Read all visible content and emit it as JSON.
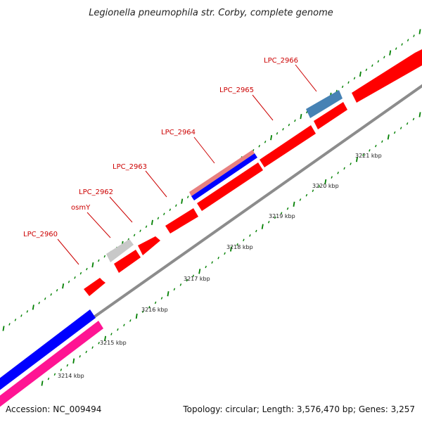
{
  "title": "Legionella pneumophila str. Corby, complete genome",
  "footer": {
    "accession": "Accession: NC_009494",
    "summary": "Topology: circular; Length: 3,576,470 bp; Genes: 3,257"
  },
  "colors": {
    "cds": "#ff0000",
    "pseudo": "#c8c8c8",
    "highlight": "#4682b4",
    "blue_track": "#0000ff",
    "pink_track": "#ff1493",
    "salmon_track": "#e88080",
    "backbone": "#8c8c8c",
    "ticks": "#008000"
  },
  "tick_labels": [
    "3214 kbp",
    "3215 kbp",
    "3216 kbp",
    "3217 kbp",
    "3218 kbp",
    "3219 kbp",
    "3220 kbp",
    "3221 kbp"
  ],
  "genes": [
    {
      "id": "LPC_2960",
      "label": "LPC_2960"
    },
    {
      "id": "osmY",
      "label": "osmY"
    },
    {
      "id": "LPC_2962",
      "label": "LPC_2962"
    },
    {
      "id": "LPC_2963",
      "label": "LPC_2963"
    },
    {
      "id": "LPC_2964",
      "label": "LPC_2964"
    },
    {
      "id": "LPC_2965",
      "label": "LPC_2965"
    },
    {
      "id": "LPC_2966",
      "label": "LPC_2966"
    }
  ]
}
